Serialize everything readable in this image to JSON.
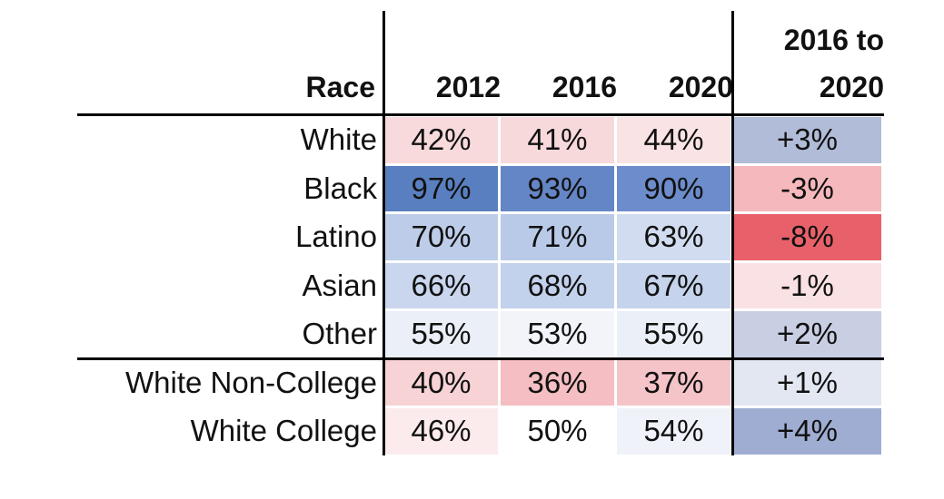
{
  "chart_data": {
    "type": "table",
    "columns": [
      "Race",
      "2012",
      "2016",
      "2020",
      "2016 to 2020"
    ],
    "change_header_lines": [
      "2016 to",
      "2020"
    ],
    "rows": [
      {
        "label": "White",
        "values": [
          "42%",
          "41%",
          "44%"
        ],
        "change": "+3%",
        "fills": [
          "#f8dadc",
          "#f8d9db",
          "#f9e3e5"
        ],
        "change_fill": "#b1bcd8"
      },
      {
        "label": "Black",
        "values": [
          "97%",
          "93%",
          "90%"
        ],
        "change": "-3%",
        "fills": [
          "#5a7fc0",
          "#6586c6",
          "#6d8ccb"
        ],
        "change_fill": "#f5b8bc"
      },
      {
        "label": "Latino",
        "values": [
          "70%",
          "71%",
          "63%"
        ],
        "change": "-8%",
        "fills": [
          "#bdcde9",
          "#b9cae8",
          "#d1dcf0"
        ],
        "change_fill": "#e8616a"
      },
      {
        "label": "Asian",
        "values": [
          "66%",
          "68%",
          "67%"
        ],
        "change": "-1%",
        "fills": [
          "#c9d6ee",
          "#c2d1ec",
          "#c5d3ed"
        ],
        "change_fill": "#fae1e3"
      },
      {
        "label": "Other",
        "values": [
          "55%",
          "53%",
          "55%"
        ],
        "change": "+2%",
        "fills": [
          "#eaeff8",
          "#f2f4fa",
          "#eaeff8"
        ],
        "change_fill": "#c8cfe3"
      },
      {
        "label": "White Non-College",
        "values": [
          "40%",
          "36%",
          "37%"
        ],
        "change": "+1%",
        "fills": [
          "#f7d3d6",
          "#f4bec2",
          "#f5c4c8"
        ],
        "change_fill": "#e3e7f2"
      },
      {
        "label": "White College",
        "values": [
          "46%",
          "50%",
          "54%"
        ],
        "change": "+4%",
        "fills": [
          "#fbebed",
          "#ffffff",
          "#eff2f9"
        ],
        "change_fill": "#9fadd2"
      }
    ]
  }
}
